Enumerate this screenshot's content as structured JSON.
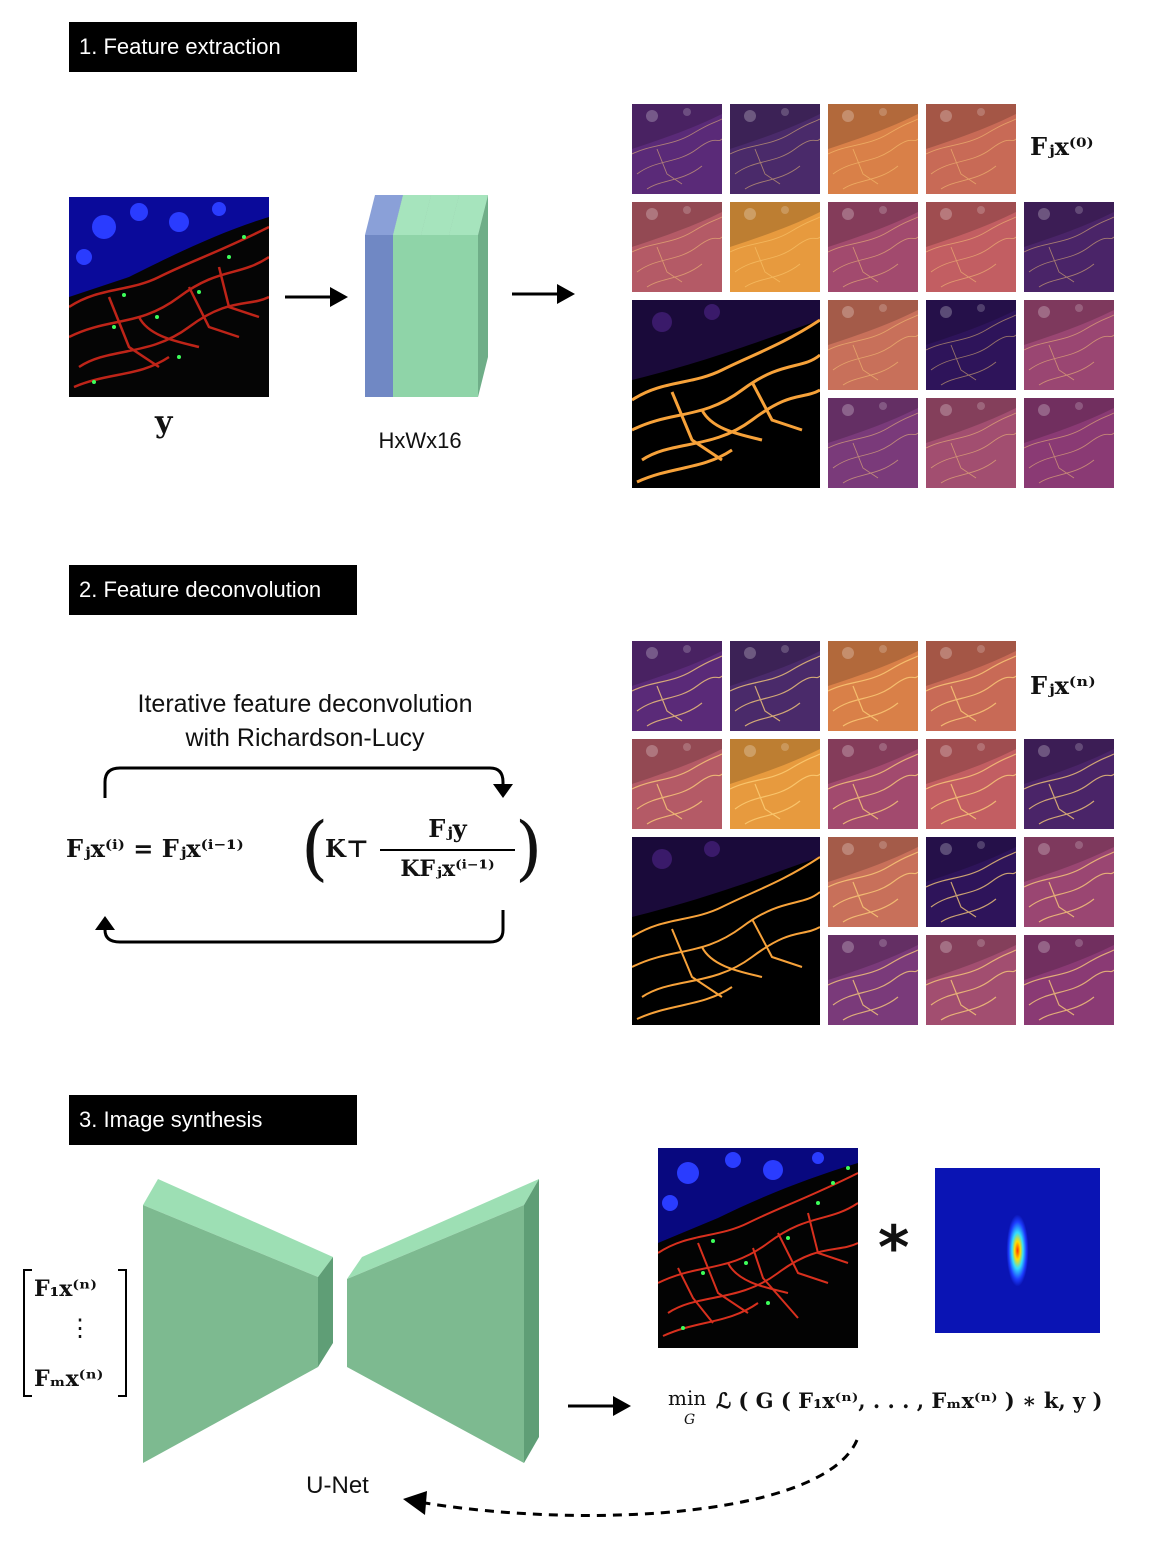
{
  "sections": [
    {
      "title": "1. Feature extraction"
    },
    {
      "title": "2. Feature deconvolution"
    },
    {
      "title": "3. Image synthesis"
    }
  ],
  "extraction": {
    "input_label": "y",
    "stack_label": "HxWx16",
    "output_label": "Fⱼx⁽⁰⁾"
  },
  "deconvolution": {
    "caption_line1": "Iterative feature deconvolution",
    "caption_line2": "with Richardson-Lucy",
    "equation_lhs": "Fⱼx⁽ⁱ⁾ = Fⱼx⁽ⁱ⁻¹⁾",
    "equation_k": "K⊤",
    "equation_num": "Fⱼy",
    "equation_den": "KFⱼx⁽ⁱ⁻¹⁾",
    "output_label": "Fⱼx⁽ⁿ⁾"
  },
  "synthesis": {
    "vector_top": "F₁x⁽ⁿ⁾",
    "vector_dots": "⋮",
    "vector_bottom": "Fₘx⁽ⁿ⁾",
    "network_label": "U-Net",
    "convolution_symbol": "*",
    "loss_min": "min",
    "loss_sub": "G",
    "loss_body": "ℒ ( G ( F₁x⁽ⁿ⁾, . . . , Fₘx⁽ⁿ⁾ ) ∗ k, y )"
  },
  "colors": {
    "blue_layer": "#7088c4",
    "green_layer": "#8fd4a8",
    "unet_face": "#7dba90",
    "unet_top": "#9ddfb4",
    "unet_side": "#5f9e76",
    "inferno_purple": "#5a2a78",
    "inferno_orange": "#e07a3a"
  },
  "feature_tiles": [
    {
      "tone": "#5a2a78"
    },
    {
      "tone": "#4a2a6a"
    },
    {
      "tone": "#d98048"
    },
    {
      "tone": "#c86a56"
    },
    {
      "tone": "#b45a66"
    },
    {
      "tone": "#e79a3e"
    },
    {
      "tone": "#a24a6e"
    },
    {
      "tone": "#c25e62"
    },
    {
      "tone": "#4a2468"
    },
    {
      "tone": "#c8705a"
    },
    {
      "tone": "#2e145a"
    },
    {
      "tone": "#9a4672"
    },
    {
      "tone": "#7a3a7a"
    },
    {
      "tone": "#a24e70"
    },
    {
      "tone": "#8a3a74"
    }
  ]
}
